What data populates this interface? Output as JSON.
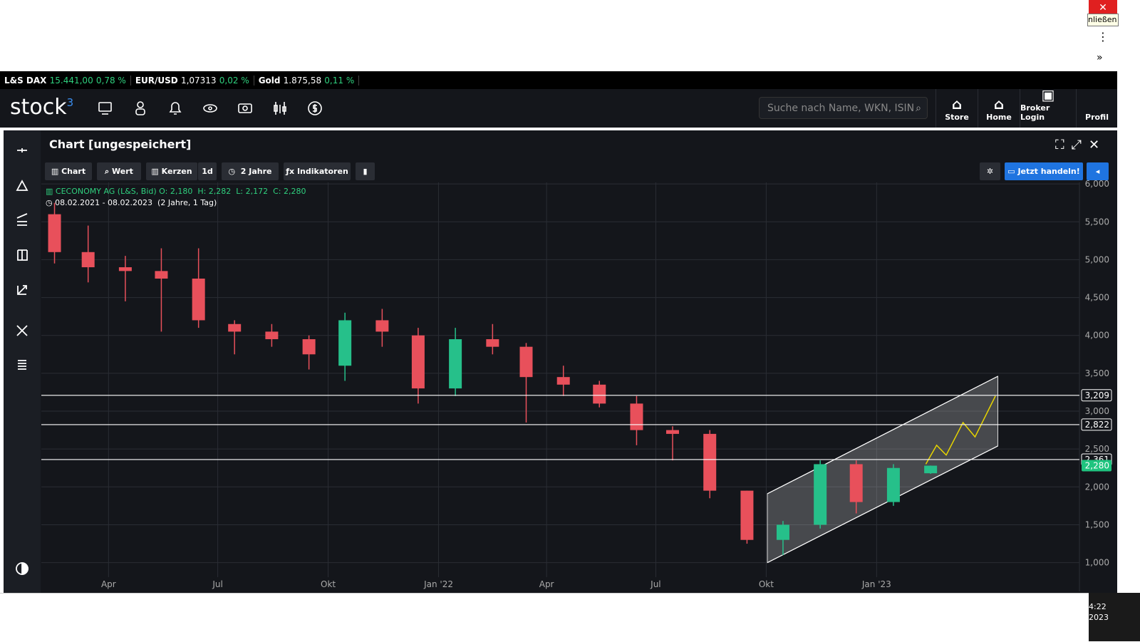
{
  "window": {
    "close_tooltip": "nließen",
    "clock": [
      "4:22",
      "2023"
    ]
  },
  "ticker": [
    {
      "name": "L&S DAX",
      "value": "15.441,00",
      "change": "0,78 %"
    },
    {
      "name": "EUR/USD",
      "value": "1,07313",
      "change": "0,02 %"
    },
    {
      "name": "Gold",
      "value": "1.875,58",
      "change": "0,11 %"
    }
  ],
  "nav": {
    "logo": "stock",
    "logo_sup": "3",
    "search_placeholder": "Suche nach Name, WKN, ISIN",
    "links": [
      "Store",
      "Home",
      "Broker Login",
      "Profil"
    ]
  },
  "panel": {
    "title": "Chart [ungespeichert]",
    "toolbar": [
      "Chart",
      "Wert",
      "Kerzen",
      "1d",
      "2 Jahre",
      "Indikatoren"
    ],
    "trade_button": "Jetzt handeln!",
    "info": {
      "instrument": "CECONOMY AG (L&S, Bid)",
      "open": "O: 2,180",
      "high": "H: 2,282",
      "low": "L: 2,172",
      "close": "C: 2,280",
      "range": "08.02.2021 - 08.02.2023",
      "span": "(2 Jahre, 1 Tag)"
    }
  },
  "chart_data": {
    "type": "candlestick",
    "x": [
      "2021-02",
      "2021-03",
      "2021-04",
      "2021-05",
      "2021-06",
      "2021-07",
      "2021-08",
      "2021-09",
      "2021-10",
      "2021-11",
      "2021-12",
      "2022-01",
      "2022-02",
      "2022-03",
      "2022-04",
      "2022-05",
      "2022-06",
      "2022-07",
      "2022-08",
      "2022-09",
      "2022-10",
      "2022-11",
      "2022-12",
      "2023-01",
      "2023-02"
    ],
    "open": [
      5.6,
      5.1,
      4.9,
      4.85,
      4.75,
      4.15,
      4.05,
      3.95,
      3.6,
      4.2,
      4.0,
      3.3,
      3.95,
      3.85,
      3.45,
      3.35,
      3.1,
      2.75,
      2.7,
      1.95,
      1.3,
      1.5,
      2.3,
      1.8,
      2.18
    ],
    "high": [
      5.75,
      5.45,
      5.05,
      5.15,
      5.15,
      4.2,
      4.15,
      4.0,
      4.3,
      4.35,
      4.1,
      4.1,
      4.15,
      3.9,
      3.6,
      3.4,
      3.2,
      2.8,
      2.75,
      1.95,
      1.55,
      2.35,
      2.35,
      2.3,
      2.282
    ],
    "low": [
      4.95,
      4.7,
      4.45,
      4.05,
      4.1,
      3.75,
      3.85,
      3.55,
      3.4,
      3.85,
      3.1,
      3.2,
      3.75,
      2.85,
      3.2,
      3.05,
      2.55,
      2.35,
      1.85,
      1.25,
      1.1,
      1.45,
      1.65,
      1.75,
      2.172
    ],
    "close": [
      5.1,
      4.9,
      4.85,
      4.75,
      4.2,
      4.05,
      3.95,
      3.75,
      4.2,
      4.05,
      3.3,
      3.95,
      3.85,
      3.45,
      3.35,
      3.1,
      2.75,
      2.7,
      1.95,
      1.3,
      1.5,
      2.3,
      1.8,
      2.25,
      2.28
    ],
    "up_color": "#26c08a",
    "down_color": "#e8505b",
    "xlim": [
      "2021-02-04",
      "2023-06-19"
    ],
    "xticks": [
      {
        "value": "2021-04-01",
        "label": "Apr"
      },
      {
        "value": "2021-07-01",
        "label": "Jul"
      },
      {
        "value": "2021-10-01",
        "label": "Okt"
      },
      {
        "value": "2022-01-01",
        "label": "Jan '22"
      },
      {
        "value": "2022-04-01",
        "label": "Apr"
      },
      {
        "value": "2022-07-01",
        "label": "Jul"
      },
      {
        "value": "2022-10-01",
        "label": "Okt"
      },
      {
        "value": "2023-01-01",
        "label": "Jan '23"
      }
    ],
    "ylim": [
      0.62,
      6.02
    ],
    "yticks": [
      {
        "value": 1,
        "label": "1,000"
      },
      {
        "value": 1.5,
        "label": "1,500"
      },
      {
        "value": 2,
        "label": "2,000"
      },
      {
        "value": 2.5,
        "label": "2,500"
      },
      {
        "value": 3,
        "label": "3,000"
      },
      {
        "value": 3.5,
        "label": "3,500"
      },
      {
        "value": 4,
        "label": "4,000"
      },
      {
        "value": 4.5,
        "label": "4,500"
      },
      {
        "value": 5,
        "label": "5,000"
      },
      {
        "value": 5.5,
        "label": "5,500"
      },
      {
        "value": 6,
        "label": "6,000"
      }
    ],
    "grid": true,
    "hlines": {
      "values": [
        3.209,
        2.822,
        2.361
      ],
      "value_labels": [
        "3,209",
        "2,822",
        "2,361"
      ],
      "color": "#ffffff"
    },
    "price_marker": {
      "value": 2.28,
      "label": "2,280",
      "color": "#1fc47f"
    },
    "channel": {
      "x": [
        "2022-10-02",
        "2023-04-12"
      ],
      "upper": [
        1.91,
        3.46
      ],
      "lower": [
        1.0,
        2.54
      ]
    },
    "projection": {
      "x": [
        "2023-02-11",
        "2023-02-20",
        "2023-02-28",
        "2023-03-14",
        "2023-03-24",
        "2023-04-10"
      ],
      "values": [
        2.3,
        2.55,
        2.42,
        2.85,
        2.66,
        3.2
      ],
      "color": "#e6d400"
    }
  }
}
